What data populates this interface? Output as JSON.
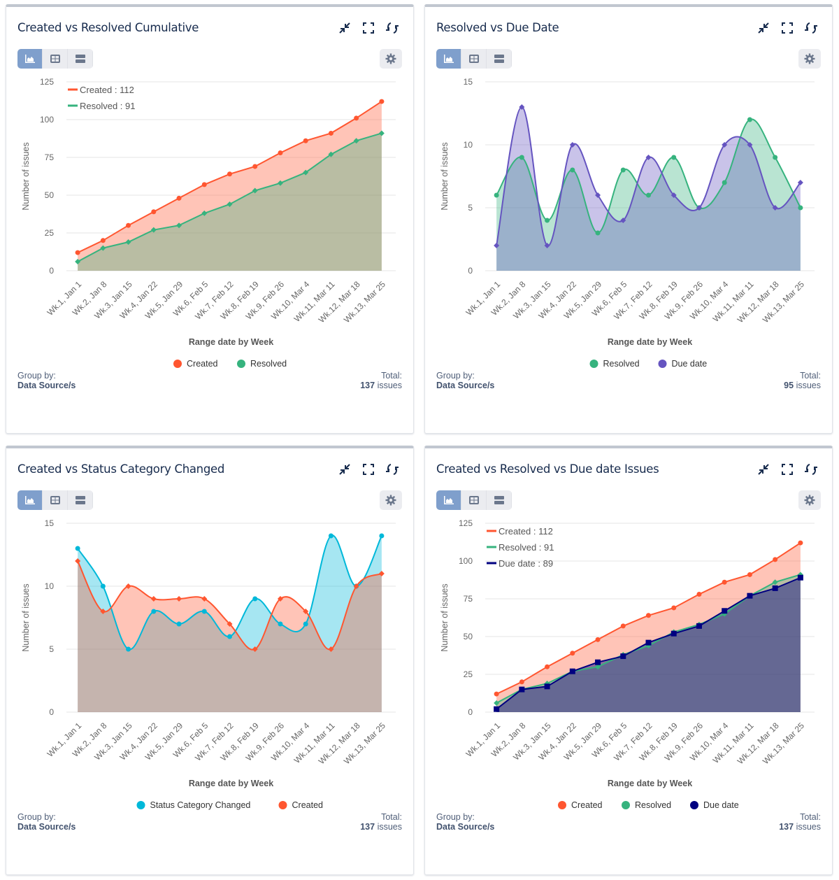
{
  "common": {
    "group_by_label": "Group by:",
    "group_by_value": "Data Source/s",
    "total_label": "Total:",
    "issues_suffix": "issues",
    "icons": [
      "compress-icon",
      "fullscreen-icon",
      "refresh-icon",
      "chart-view-icon",
      "table-view-icon",
      "list-view-icon",
      "settings-gear-icon"
    ]
  },
  "panels": [
    {
      "title": "Created vs Resolved Cumulative",
      "total": "137",
      "total_unit": "issues"
    },
    {
      "title": "Resolved vs Due Date",
      "total": "95",
      "total_unit": "issues"
    },
    {
      "title": "Created vs Status Category Changed",
      "total": "137",
      "total_unit": "issues"
    },
    {
      "title": "Created vs Resolved vs Due date Issues",
      "total": "137",
      "total_unit": "issues"
    }
  ],
  "chart_data": [
    {
      "type": "area",
      "curve": "linear",
      "categories": [
        "Wk.1, Jan 1",
        "Wk.2, Jan 8",
        "Wk.3, Jan 15",
        "Wk.4, Jan 22",
        "Wk.5, Jan 29",
        "Wk.6, Feb 5",
        "Wk.7, Feb 12",
        "Wk.8, Feb 19",
        "Wk.9, Feb 26",
        "Wk.10, Mar 4",
        "Wk.11, Mar 11",
        "Wk.12, Mar 18",
        "Wk.13, Mar 25"
      ],
      "xlabel": "Range date by Week",
      "ylabel": "Number of issues",
      "ylim": [
        0,
        125
      ],
      "yticks": [
        0,
        25,
        50,
        75,
        100,
        125
      ],
      "grid": true,
      "legend": "bottom",
      "inline_legend": [
        "Created : 112",
        "Resolved : 91"
      ],
      "series": [
        {
          "name": "Created",
          "color": "#ff5630",
          "values": [
            12,
            20,
            30,
            39,
            48,
            57,
            64,
            69,
            78,
            86,
            91,
            101,
            112
          ]
        },
        {
          "name": "Resolved",
          "color": "#36b37e",
          "values": [
            6,
            15,
            19,
            27,
            30,
            38,
            44,
            53,
            58,
            65,
            77,
            86,
            91
          ]
        }
      ]
    },
    {
      "type": "area",
      "curve": "smooth",
      "categories": [
        "Wk.1, Jan 1",
        "Wk.2, Jan 8",
        "Wk.3, Jan 15",
        "Wk.4, Jan 22",
        "Wk.5, Jan 29",
        "Wk.6, Feb 5",
        "Wk.7, Feb 12",
        "Wk.8, Feb 19",
        "Wk.9, Feb 26",
        "Wk.10, Mar 4",
        "Wk.11, Mar 11",
        "Wk.12, Mar 18",
        "Wk.13, Mar 25"
      ],
      "xlabel": "Range date by Week",
      "ylabel": "Number of issues",
      "ylim": [
        0,
        15
      ],
      "yticks": [
        0,
        5,
        10,
        15
      ],
      "grid": true,
      "legend": "bottom",
      "series": [
        {
          "name": "Resolved",
          "color": "#36b37e",
          "values": [
            6,
            9,
            4,
            8,
            3,
            8,
            6,
            9,
            5,
            7,
            12,
            9,
            5
          ]
        },
        {
          "name": "Due date",
          "color": "#6554c0",
          "values": [
            2,
            13,
            2,
            10,
            6,
            4,
            9,
            6,
            5,
            10,
            10,
            5,
            7
          ]
        }
      ]
    },
    {
      "type": "area",
      "curve": "smooth",
      "categories": [
        "Wk.1, Jan 1",
        "Wk.2, Jan 8",
        "Wk.3, Jan 15",
        "Wk.4, Jan 22",
        "Wk.5, Jan 29",
        "Wk.6, Feb 5",
        "Wk.7, Feb 12",
        "Wk.8, Feb 19",
        "Wk.9, Feb 26",
        "Wk.10, Mar 4",
        "Wk.11, Mar 11",
        "Wk.12, Mar 18",
        "Wk.13, Mar 25"
      ],
      "xlabel": "Range date by Week",
      "ylabel": "Number of issues",
      "ylim": [
        0,
        15
      ],
      "yticks": [
        0,
        5,
        10,
        15
      ],
      "grid": true,
      "legend": "bottom",
      "series": [
        {
          "name": "Status Category Changed",
          "color": "#00b8d9",
          "values": [
            13,
            10,
            5,
            8,
            7,
            8,
            6,
            9,
            7,
            7,
            14,
            10,
            14
          ]
        },
        {
          "name": "Created",
          "color": "#ff5630",
          "values": [
            12,
            8,
            10,
            9,
            9,
            9,
            7,
            5,
            9,
            8,
            5,
            10,
            11
          ]
        }
      ]
    },
    {
      "type": "area",
      "curve": "linear",
      "categories": [
        "Wk.1, Jan 1",
        "Wk.2, Jan 8",
        "Wk.3, Jan 15",
        "Wk.4, Jan 22",
        "Wk.5, Jan 29",
        "Wk.6, Feb 5",
        "Wk.7, Feb 12",
        "Wk.8, Feb 19",
        "Wk.9, Feb 26",
        "Wk.10, Mar 4",
        "Wk.11, Mar 11",
        "Wk.12, Mar 18",
        "Wk.13, Mar 25"
      ],
      "xlabel": "Range date by Week",
      "ylabel": "Number of issues",
      "ylim": [
        0,
        125
      ],
      "yticks": [
        0,
        25,
        50,
        75,
        100,
        125
      ],
      "grid": true,
      "legend": "bottom",
      "inline_legend": [
        "Created : 112",
        "Resolved : 91",
        "Due date : 89"
      ],
      "series": [
        {
          "name": "Created",
          "color": "#ff5630",
          "values": [
            12,
            20,
            30,
            39,
            48,
            57,
            64,
            69,
            78,
            86,
            91,
            101,
            112
          ]
        },
        {
          "name": "Resolved",
          "color": "#36b37e",
          "values": [
            6,
            15,
            19,
            27,
            30,
            38,
            44,
            53,
            58,
            65,
            77,
            86,
            91
          ]
        },
        {
          "name": "Due date",
          "color": "#000080",
          "values": [
            2,
            15,
            17,
            27,
            33,
            37,
            46,
            52,
            57,
            67,
            77,
            82,
            89
          ]
        }
      ]
    }
  ]
}
